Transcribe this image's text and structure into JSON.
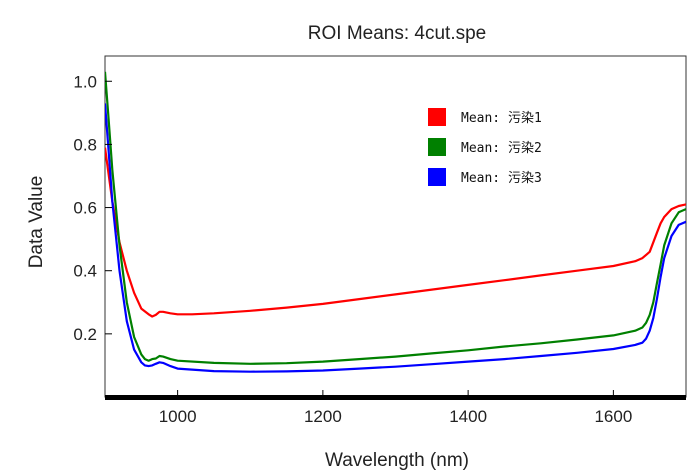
{
  "chart_data": {
    "type": "line",
    "title": "ROI Means: 4cut.spe",
    "xlabel": "Wavelength (nm)",
    "ylabel": "Data Value",
    "xlim": [
      900,
      1700
    ],
    "ylim": [
      0.0,
      1.08
    ],
    "xticks": [
      1000,
      1200,
      1400,
      1600
    ],
    "yticks": [
      0.2,
      0.4,
      0.6,
      0.8,
      1.0
    ],
    "xtick_labels": [
      "1000",
      "1200",
      "1400",
      "1600"
    ],
    "ytick_labels": [
      "0.2",
      "0.4",
      "0.6",
      "0.8",
      "1.0"
    ],
    "legend_position": "upper-right",
    "series": [
      {
        "name": "Mean: 污染1",
        "color": "#ff0000",
        "x": [
          900,
          910,
          920,
          930,
          940,
          950,
          960,
          965,
          970,
          975,
          980,
          990,
          1000,
          1020,
          1050,
          1100,
          1150,
          1200,
          1250,
          1300,
          1350,
          1400,
          1450,
          1500,
          1550,
          1600,
          1630,
          1640,
          1645,
          1650,
          1655,
          1660,
          1665,
          1670,
          1680,
          1690,
          1700
        ],
        "y": [
          0.79,
          0.62,
          0.49,
          0.4,
          0.33,
          0.28,
          0.262,
          0.255,
          0.26,
          0.27,
          0.27,
          0.265,
          0.262,
          0.262,
          0.265,
          0.273,
          0.283,
          0.295,
          0.31,
          0.325,
          0.34,
          0.355,
          0.37,
          0.385,
          0.4,
          0.415,
          0.43,
          0.44,
          0.45,
          0.46,
          0.49,
          0.52,
          0.55,
          0.57,
          0.595,
          0.605,
          0.61
        ]
      },
      {
        "name": "Mean: 污染2",
        "color": "#008000",
        "x": [
          900,
          905,
          910,
          920,
          930,
          940,
          950,
          955,
          960,
          965,
          970,
          975,
          980,
          990,
          1000,
          1050,
          1100,
          1150,
          1200,
          1250,
          1300,
          1350,
          1400,
          1450,
          1500,
          1550,
          1600,
          1630,
          1640,
          1645,
          1650,
          1655,
          1660,
          1665,
          1670,
          1680,
          1690,
          1700
        ],
        "y": [
          1.03,
          0.88,
          0.72,
          0.48,
          0.3,
          0.19,
          0.135,
          0.12,
          0.115,
          0.12,
          0.122,
          0.13,
          0.128,
          0.12,
          0.115,
          0.108,
          0.105,
          0.107,
          0.112,
          0.12,
          0.128,
          0.138,
          0.148,
          0.16,
          0.17,
          0.182,
          0.195,
          0.21,
          0.22,
          0.235,
          0.26,
          0.3,
          0.36,
          0.42,
          0.48,
          0.55,
          0.585,
          0.595
        ]
      },
      {
        "name": "Mean: 污染3",
        "color": "#0000ff",
        "x": [
          900,
          905,
          910,
          920,
          930,
          940,
          950,
          955,
          960,
          965,
          970,
          975,
          980,
          990,
          1000,
          1050,
          1100,
          1150,
          1200,
          1250,
          1300,
          1350,
          1400,
          1450,
          1500,
          1550,
          1600,
          1630,
          1640,
          1645,
          1650,
          1655,
          1660,
          1665,
          1670,
          1680,
          1690,
          1700
        ],
        "y": [
          0.93,
          0.78,
          0.62,
          0.4,
          0.24,
          0.15,
          0.11,
          0.1,
          0.098,
          0.1,
          0.105,
          0.11,
          0.108,
          0.098,
          0.09,
          0.082,
          0.08,
          0.081,
          0.084,
          0.09,
          0.096,
          0.104,
          0.112,
          0.12,
          0.13,
          0.14,
          0.152,
          0.165,
          0.172,
          0.185,
          0.21,
          0.25,
          0.31,
          0.38,
          0.44,
          0.51,
          0.545,
          0.555
        ]
      }
    ]
  }
}
